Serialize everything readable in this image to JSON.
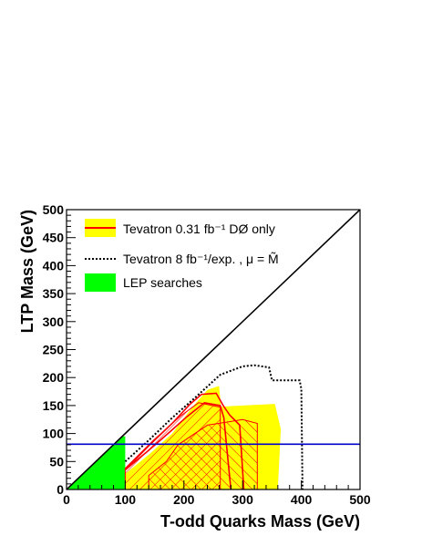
{
  "chart_data": {
    "type": "area",
    "xlabel": "T-odd Quarks  Mass (GeV)",
    "ylabel": "LTP Mass (GeV)",
    "xlim": [
      0,
      500
    ],
    "ylim": [
      0,
      500
    ],
    "xticks": [
      0,
      100,
      200,
      300,
      400,
      500
    ],
    "yticks": [
      0,
      50,
      100,
      150,
      200,
      250,
      300,
      350,
      400,
      450,
      500
    ],
    "legend_position": "top-left",
    "legend": [
      {
        "key": "tev031",
        "label": "Tevatron 0.31 fb⁻¹ DØ only"
      },
      {
        "key": "tev8",
        "label": "Tevatron 8 fb⁻¹/exp. , μ = M̃"
      },
      {
        "key": "lep",
        "label": "LEP searches"
      }
    ],
    "series": [
      {
        "key": "diagonal",
        "style": "line",
        "color": "#000000",
        "points": [
          [
            0,
            0
          ],
          [
            500,
            500
          ]
        ]
      },
      {
        "key": "lep",
        "style": "fill",
        "color": "#00ff00",
        "points": [
          [
            0,
            0
          ],
          [
            100,
            0
          ],
          [
            100,
            95
          ],
          [
            95,
            95
          ]
        ]
      },
      {
        "key": "tev031_band",
        "style": "fill",
        "color": "#ffff00",
        "points": [
          [
            100,
            28
          ],
          [
            140,
            62
          ],
          [
            180,
            100
          ],
          [
            215,
            148
          ],
          [
            240,
            178
          ],
          [
            260,
            185
          ],
          [
            263,
            148
          ],
          [
            355,
            153
          ],
          [
            365,
            108
          ],
          [
            360,
            0
          ],
          [
            100,
            0
          ]
        ]
      },
      {
        "key": "tev031",
        "style": "line",
        "color": "#ff0000",
        "points": [
          [
            100,
            35
          ],
          [
            140,
            78
          ],
          [
            180,
            118
          ],
          [
            210,
            152
          ],
          [
            230,
            170
          ],
          [
            255,
            172
          ],
          [
            267,
            150
          ],
          [
            278,
            133
          ],
          [
            295,
            115
          ],
          [
            302,
            0
          ]
        ]
      },
      {
        "key": "tev031_inner",
        "style": "line",
        "color": "#ff0000",
        "points": [
          [
            100,
            35
          ],
          [
            140,
            70
          ],
          [
            175,
            102
          ],
          [
            205,
            130
          ],
          [
            235,
            155
          ],
          [
            262,
            150
          ],
          [
            268,
            128
          ],
          [
            280,
            0
          ]
        ]
      },
      {
        "key": "hatch_left",
        "style": "hatched",
        "color": "#ff0000",
        "points": [
          [
            100,
            38
          ],
          [
            148,
            88
          ],
          [
            195,
            132
          ],
          [
            225,
            155
          ],
          [
            262,
            147
          ],
          [
            262,
            0
          ],
          [
            100,
            0
          ]
        ]
      },
      {
        "key": "hatch_right",
        "style": "hatched",
        "color": "#ff0000",
        "points": [
          [
            140,
            25
          ],
          [
            170,
            50
          ],
          [
            190,
            80
          ],
          [
            240,
            115
          ],
          [
            300,
            125
          ],
          [
            325,
            118
          ],
          [
            325,
            0
          ],
          [
            140,
            0
          ]
        ]
      },
      {
        "key": "tev8",
        "style": "dashed",
        "color": "#000000",
        "points": [
          [
            100,
            50
          ],
          [
            140,
            88
          ],
          [
            180,
            128
          ],
          [
            220,
            165
          ],
          [
            262,
            205
          ],
          [
            300,
            220
          ],
          [
            320,
            222
          ],
          [
            345,
            218
          ],
          [
            350,
            195
          ],
          [
            397,
            195
          ],
          [
            400,
            180
          ],
          [
            402,
            0
          ]
        ]
      },
      {
        "key": "lep_horizontal",
        "style": "line",
        "color": "#0000cc",
        "points": [
          [
            0,
            81
          ],
          [
            500,
            81
          ]
        ]
      }
    ]
  }
}
